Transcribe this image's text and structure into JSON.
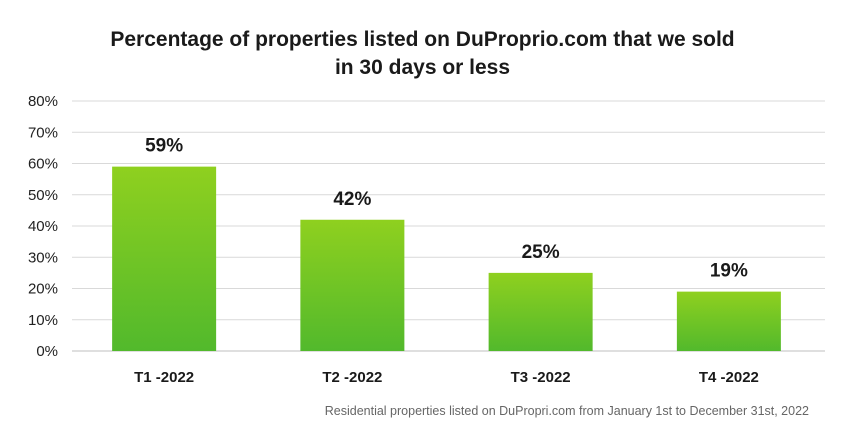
{
  "chart_data": {
    "type": "bar",
    "title_line1": "Percentage of properties listed on DuProprio.com that we sold",
    "title_line2": "in 30 days or less",
    "categories": [
      "T1 -2022",
      "T2 -2022",
      "T3 -2022",
      "T4 -2022"
    ],
    "values": [
      59,
      42,
      25,
      19
    ],
    "data_labels": [
      "59%",
      "42%",
      "25%",
      "19%"
    ],
    "y_ticks": [
      "0%",
      "10%",
      "20%",
      "30%",
      "40%",
      "50%",
      "60%",
      "70%",
      "80%"
    ],
    "ylim": [
      0,
      80
    ],
    "grid": true,
    "xlabel": "",
    "ylabel": "",
    "bar_color_top": "#8fd01f",
    "bar_color_bottom": "#52b92c"
  },
  "footnote": "Residential properties listed on DuPropri.com from January 1st to December 31st, 2022"
}
